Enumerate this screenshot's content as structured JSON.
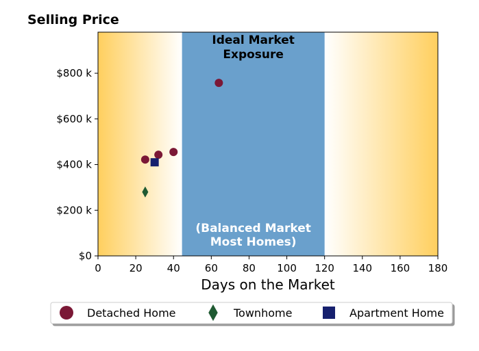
{
  "chart_data": {
    "type": "scatter",
    "title": "Selling Price",
    "xlabel": "Days on the Market",
    "ylabel": "",
    "xlim": [
      0,
      180
    ],
    "ylim": [
      0,
      980000
    ],
    "x_ticks": [
      0,
      20,
      40,
      60,
      80,
      100,
      120,
      140,
      160,
      180
    ],
    "x_tick_labels": [
      "0",
      "20",
      "40",
      "60",
      "80",
      "100",
      "120",
      "140",
      "160",
      "180"
    ],
    "y_ticks": [
      0,
      200000,
      400000,
      600000,
      800000
    ],
    "y_tick_labels": [
      "$0",
      "$200 k",
      "$400 k",
      "$600 k",
      "$800 k"
    ],
    "grid": false,
    "legend_position": "bottom",
    "shaded_region": {
      "x_start": 44.5,
      "x_end": 120,
      "color": "#6aa0cc"
    },
    "background_gradient_color": "#ffcf5e",
    "annotations": {
      "top_line1": "Ideal Market",
      "top_line2": "Exposure",
      "bottom_line1": "(Balanced Market",
      "bottom_line2": "Most Homes)"
    },
    "series": [
      {
        "name": "Detached Home",
        "marker": "circle",
        "color": "#7b1836",
        "points": [
          [
            25,
            422000
          ],
          [
            32,
            443000
          ],
          [
            40,
            455000
          ],
          [
            64,
            758000
          ]
        ]
      },
      {
        "name": "Townhome",
        "marker": "diamond",
        "color": "#1f5a32",
        "points": [
          [
            25,
            280000
          ]
        ]
      },
      {
        "name": "Apartment Home",
        "marker": "square",
        "color": "#16206e",
        "points": [
          [
            30,
            410000
          ]
        ]
      }
    ]
  }
}
